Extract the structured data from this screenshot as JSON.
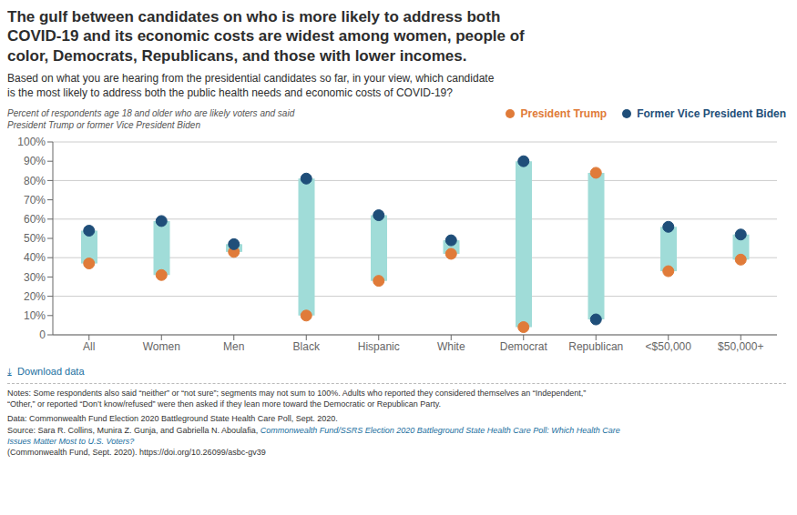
{
  "chart_data": {
    "type": "dumbbell",
    "title": "The gulf between candidates on who is more likely to address both\nCOVID-19 and its economic costs are widest among women, people of\ncolor, Democrats, Republicans, and those with lower incomes.",
    "subtitle": "Based on what you are hearing from the presidential candidates so far, in your view, which candidate\nis the most likely to address both the public health needs and economic costs of COVID-19?",
    "y_label": "Percent of respondents age 18 and older who are likely voters and said\nPresident Trump or former Vice President Biden",
    "categories": [
      "All",
      "Women",
      "Men",
      "Black",
      "Hispanic",
      "White",
      "Democrat",
      "Republican",
      "<$50,000",
      "$50,000+"
    ],
    "series": [
      {
        "name": "President Trump",
        "color": "#e07b39",
        "values": [
          37,
          31,
          43,
          10,
          28,
          42,
          4,
          84,
          33,
          39
        ]
      },
      {
        "name": "Former Vice President Biden",
        "color": "#1f4e79",
        "values": [
          54,
          59,
          47,
          81,
          62,
          49,
          90,
          8,
          56,
          52
        ]
      }
    ],
    "color": "#a0dcd8",
    "ylim": [
      0,
      100
    ],
    "yticks": [
      0,
      {
        "value": 10,
        "label": "10%"
      },
      {
        "value": 20,
        "label": "20%"
      },
      {
        "value": 30,
        "label": "30%"
      },
      {
        "value": 40,
        "label": "40%"
      },
      {
        "value": 50,
        "label": "50%"
      },
      {
        "value": 60,
        "label": "60%"
      },
      {
        "value": 70,
        "label": "70%"
      },
      {
        "value": 80,
        "label": "80%"
      },
      {
        "value": 90,
        "label": "90%"
      },
      {
        "value": 100,
        "label": "100%"
      }
    ],
    "grid": true,
    "legend": "upper right",
    "annotations": [
      "⤓  Download data",
      "Notes: Some respondents also said “neither” or “not sure”; segments may not sum to 100%. Adults who reported they considered themselves an “Independent,”\n“Other,” or reported “Don’t know/refused” were then asked if they lean more toward the Democratic or Republican Party.",
      "Data: Commonwealth Fund Election 2020 Battleground State Health Care Poll, Sept. 2020.",
      "Source: Sara R. Collins, Munira Z. Gunja, and Gabriella N. Aboulafia, ",
      "Commonwealth Fund/SSRS Election 2020 Battleground State Health Care Poll: Which Health Care\nIssues Matter Most to U.S. Voters?",
      "(Commonwealth Fund, Sept. 2020). https://doi.org/10.26099/asbc-gv39"
    ]
  }
}
